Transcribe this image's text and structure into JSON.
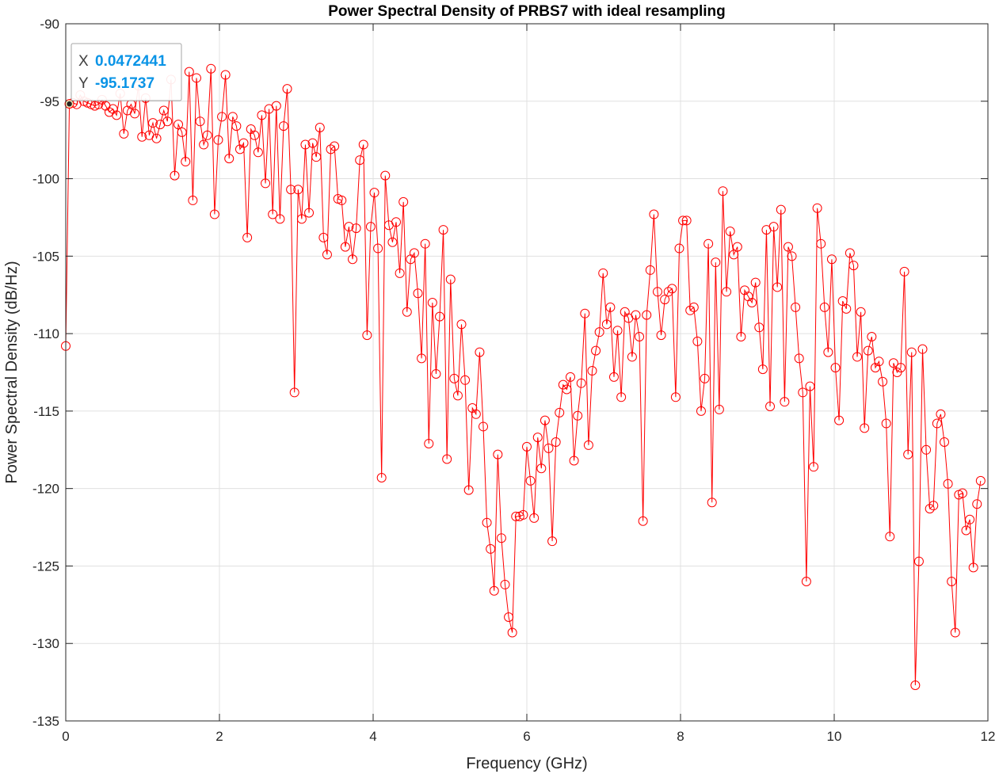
{
  "chart_data": {
    "type": "line",
    "title": "Power Spectral Density of PRBS7 with ideal resampling",
    "xlabel": "Frequency (GHz)",
    "ylabel": "Power Spectral Density (dB/Hz)",
    "xlim": [
      0,
      12
    ],
    "ylim": [
      -135,
      -90
    ],
    "xticks": [
      "0",
      "2",
      "4",
      "6",
      "8",
      "10",
      "12"
    ],
    "yticks": [
      "-90",
      "-95",
      "-100",
      "-105",
      "-110",
      "-115",
      "-120",
      "-125",
      "-130",
      "-135"
    ],
    "grid": true,
    "series": [
      {
        "color": "#ff0000",
        "marker": "circle",
        "x_step": 0.0472441,
        "y": [
          -110.8,
          -95.17,
          -95.1,
          -95.2,
          -94.6,
          -95.0,
          -95.1,
          -95.2,
          -95.3,
          -95.2,
          -94.9,
          -95.3,
          -95.7,
          -95.5,
          -95.9,
          -94.5,
          -97.1,
          -95.6,
          -95.2,
          -95.8,
          -94.0,
          -97.3,
          -94.8,
          -97.2,
          -96.4,
          -97.4,
          -96.5,
          -95.6,
          -96.3,
          -93.6,
          -99.8,
          -96.5,
          -97.0,
          -98.9,
          -93.1,
          -101.4,
          -93.5,
          -96.3,
          -97.8,
          -97.2,
          -92.9,
          -102.3,
          -97.5,
          -96.0,
          -93.3,
          -98.7,
          -96.0,
          -96.6,
          -98.1,
          -97.7,
          -103.8,
          -96.8,
          -97.2,
          -98.3,
          -95.9,
          -100.3,
          -95.5,
          -102.3,
          -95.3,
          -102.6,
          -96.6,
          -94.2,
          -100.7,
          -113.8,
          -100.7,
          -102.6,
          -97.8,
          -102.2,
          -97.7,
          -98.6,
          -96.7,
          -103.8,
          -104.9,
          -98.1,
          -97.9,
          -101.3,
          -101.4,
          -104.4,
          -103.1,
          -105.2,
          -103.2,
          -98.8,
          -97.8,
          -110.1,
          -103.1,
          -100.9,
          -104.5,
          -119.3,
          -99.8,
          -103.0,
          -104.1,
          -102.8,
          -106.1,
          -101.5,
          -108.6,
          -105.2,
          -104.8,
          -107.4,
          -111.6,
          -104.2,
          -117.1,
          -108.0,
          -112.6,
          -108.9,
          -103.3,
          -118.1,
          -106.5,
          -112.9,
          -114.0,
          -109.4,
          -113.0,
          -120.1,
          -114.8,
          -115.2,
          -111.2,
          -116.0,
          -122.2,
          -123.9,
          -126.6,
          -117.8,
          -123.2,
          -126.2,
          -128.3,
          -129.3,
          -121.8,
          -121.8,
          -121.7,
          -117.3,
          -119.5,
          -121.9,
          -116.7,
          -118.7,
          -115.6,
          -117.4,
          -123.4,
          -117.0,
          -115.1,
          -113.3,
          -113.6,
          -112.8,
          -118.2,
          -115.3,
          -113.2,
          -108.7,
          -117.2,
          -112.4,
          -111.1,
          -109.9,
          -106.1,
          -109.4,
          -108.3,
          -112.8,
          -109.8,
          -114.1,
          -108.6,
          -109.0,
          -111.5,
          -108.8,
          -110.2,
          -122.1,
          -108.8,
          -105.9,
          -102.3,
          -107.3,
          -110.1,
          -107.8,
          -107.3,
          -107.1,
          -114.1,
          -104.5,
          -102.7,
          -102.7,
          -108.5,
          -108.3,
          -110.5,
          -115.0,
          -112.9,
          -104.2,
          -120.9,
          -105.4,
          -114.9,
          -100.8,
          -107.3,
          -103.4,
          -104.9,
          -104.4,
          -110.2,
          -107.2,
          -107.6,
          -108.0,
          -106.7,
          -109.6,
          -112.3,
          -103.3,
          -114.7,
          -103.1,
          -107.0,
          -102.0,
          -114.4,
          -104.4,
          -105.0,
          -108.3,
          -111.6,
          -113.8,
          -126.0,
          -113.4,
          -118.6,
          -101.9,
          -104.2,
          -108.3,
          -111.2,
          -105.2,
          -112.2,
          -115.6,
          -107.9,
          -108.4,
          -104.8,
          -105.6,
          -111.5,
          -108.6,
          -116.1,
          -111.1,
          -110.2,
          -112.2,
          -111.8,
          -113.1,
          -115.8,
          -123.1,
          -111.9,
          -112.5,
          -112.2,
          -106.0,
          -117.8,
          -111.2,
          -132.7,
          -124.7,
          -111.0,
          -117.5,
          -121.3,
          -121.1,
          -115.8,
          -115.2,
          -117.0,
          -119.7,
          -126.0,
          -129.3,
          -120.4,
          -120.3,
          -122.7,
          -122.0,
          -125.1,
          -121.0,
          -119.5
        ]
      }
    ],
    "datatip": {
      "x_label": "X",
      "x_value": "0.0472441",
      "y_label": "Y",
      "y_value": "-95.1737"
    }
  }
}
